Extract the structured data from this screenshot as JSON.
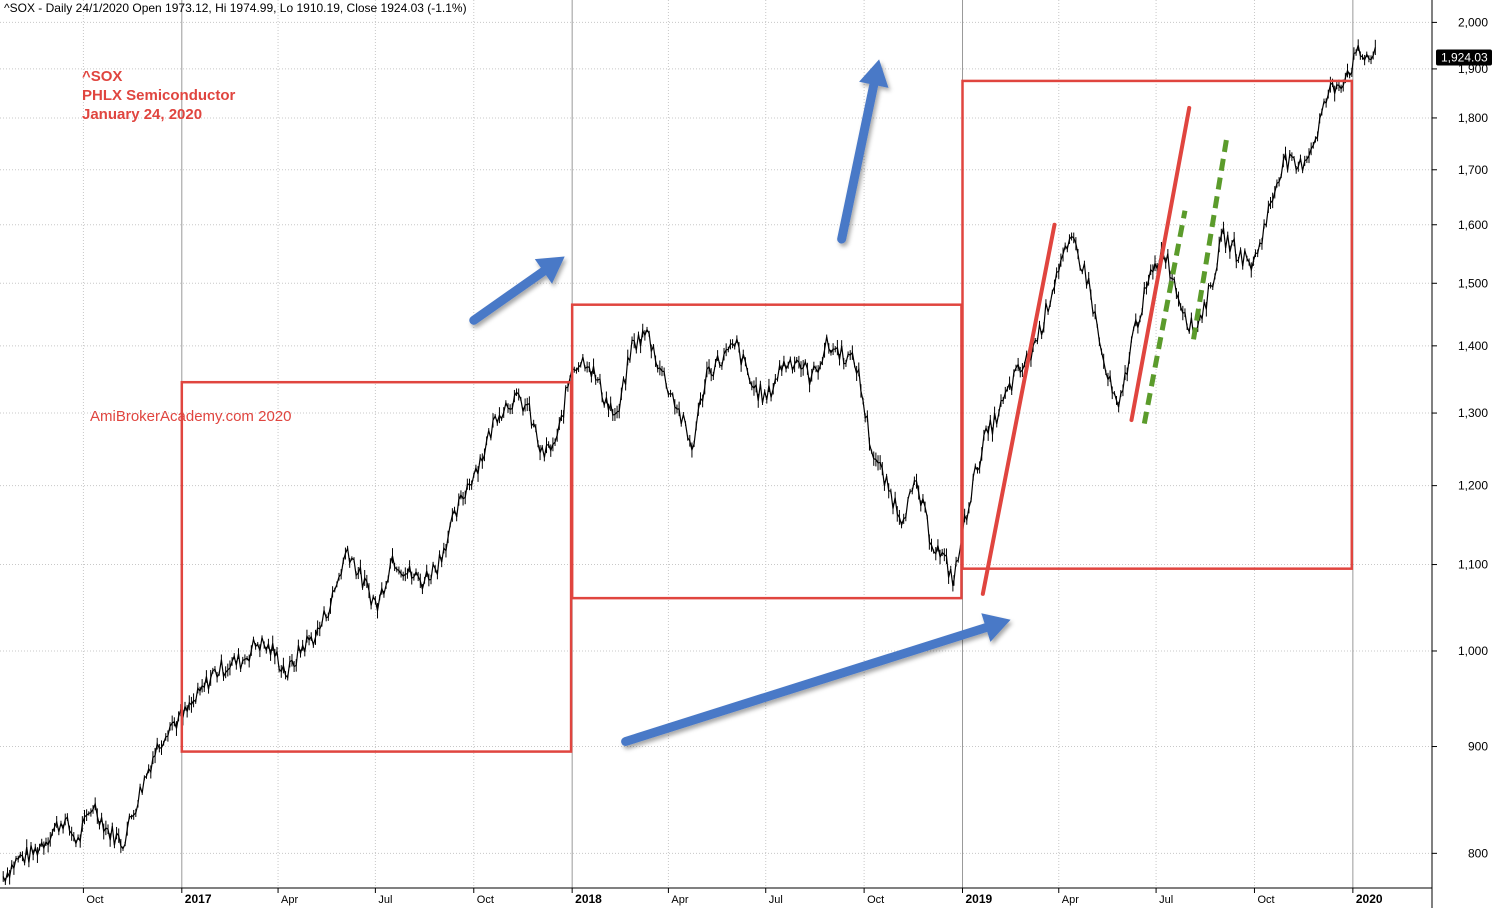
{
  "header": "^SOX - Daily 24/1/2020 Open 1973.12, Hi 1974.99, Lo 1910.19, Close 1924.03 (-1.1%)",
  "annotation": {
    "symbol": "^SOX",
    "name": "PHLX Semiconductor",
    "date": "January 24, 2020"
  },
  "watermark": "AmiBrokerAcademy.com   2020",
  "price_label": "1,924.03",
  "colors": {
    "box": "#e0453f",
    "trend_red": "#e0453f",
    "trend_green": "#5b9b2b",
    "arrow_blue": "#4a79c7",
    "price_label_bg": "#000000",
    "grid": "#c8c8c8"
  },
  "chart_data": {
    "type": "line",
    "scale": "log",
    "ylim": [
      770,
      2050
    ],
    "yticks": [
      800,
      900,
      1000,
      1100,
      1200,
      1300,
      1400,
      1500,
      1600,
      1700,
      1800,
      1900,
      2000
    ],
    "ytick_labels": [
      "800",
      "900",
      "1,000",
      "1,100",
      "1,200",
      "1,300",
      "1,400",
      "1,500",
      "1,600",
      "1,700",
      "1,800",
      "1,900",
      "2,000"
    ],
    "xlim": [
      "2016-07-15",
      "2020-03-15"
    ],
    "xticks": [
      {
        "date": "2016-10-01",
        "label": "Oct",
        "major": false
      },
      {
        "date": "2017-01-01",
        "label": "2017",
        "major": true
      },
      {
        "date": "2017-04-01",
        "label": "Apr",
        "major": false
      },
      {
        "date": "2017-07-01",
        "label": "Jul",
        "major": false
      },
      {
        "date": "2017-10-01",
        "label": "Oct",
        "major": false
      },
      {
        "date": "2018-01-01",
        "label": "2018",
        "major": true
      },
      {
        "date": "2018-04-01",
        "label": "Apr",
        "major": false
      },
      {
        "date": "2018-07-01",
        "label": "Jul",
        "major": false
      },
      {
        "date": "2018-10-01",
        "label": "Oct",
        "major": false
      },
      {
        "date": "2019-01-01",
        "label": "2019",
        "major": true
      },
      {
        "date": "2019-04-01",
        "label": "Apr",
        "major": false
      },
      {
        "date": "2019-07-01",
        "label": "Jul",
        "major": false
      },
      {
        "date": "2019-10-01",
        "label": "Oct",
        "major": false
      },
      {
        "date": "2020-01-01",
        "label": "2020",
        "major": true
      }
    ],
    "grid": true,
    "series": [
      {
        "x": [
          "2016-07-18",
          "2016-08-01",
          "2016-08-15",
          "2016-08-29",
          "2016-09-12",
          "2016-09-26",
          "2016-10-10",
          "2016-10-24",
          "2016-11-07",
          "2016-11-21",
          "2016-12-05",
          "2016-12-19",
          "2017-01-02",
          "2017-01-16",
          "2017-01-30",
          "2017-02-13",
          "2017-02-27",
          "2017-03-13",
          "2017-03-27",
          "2017-04-10",
          "2017-04-24",
          "2017-05-08",
          "2017-05-22",
          "2017-06-05",
          "2017-06-19",
          "2017-07-03",
          "2017-07-17",
          "2017-07-31",
          "2017-08-14",
          "2017-08-28",
          "2017-09-11",
          "2017-09-25",
          "2017-10-09",
          "2017-10-23",
          "2017-11-06",
          "2017-11-20",
          "2017-12-04",
          "2017-12-18",
          "2018-01-01",
          "2018-01-15",
          "2018-01-29",
          "2018-02-12",
          "2018-02-26",
          "2018-03-12",
          "2018-03-26",
          "2018-04-09",
          "2018-04-23",
          "2018-05-07",
          "2018-05-21",
          "2018-06-04",
          "2018-06-18",
          "2018-07-02",
          "2018-07-16",
          "2018-07-30",
          "2018-08-13",
          "2018-08-27",
          "2018-09-10",
          "2018-09-24",
          "2018-10-08",
          "2018-10-22",
          "2018-11-05",
          "2018-11-19",
          "2018-12-03",
          "2018-12-17",
          "2018-12-24",
          "2019-01-07",
          "2019-01-21",
          "2019-02-04",
          "2019-02-18",
          "2019-03-04",
          "2019-03-18",
          "2019-04-01",
          "2019-04-15",
          "2019-04-29",
          "2019-05-13",
          "2019-05-27",
          "2019-06-10",
          "2019-06-24",
          "2019-07-08",
          "2019-07-22",
          "2019-08-05",
          "2019-08-19",
          "2019-09-02",
          "2019-09-16",
          "2019-09-30",
          "2019-10-14",
          "2019-10-28",
          "2019-11-11",
          "2019-11-25",
          "2019-12-09",
          "2019-12-23",
          "2020-01-06",
          "2020-01-24"
        ],
        "close": [
          780,
          795,
          800,
          815,
          830,
          810,
          845,
          820,
          810,
          850,
          890,
          920,
          930,
          950,
          975,
          985,
          990,
          1010,
          1000,
          975,
          1005,
          1020,
          1060,
          1120,
          1080,
          1050,
          1110,
          1090,
          1080,
          1100,
          1150,
          1200,
          1240,
          1300,
          1320,
          1310,
          1240,
          1260,
          1370,
          1380,
          1330,
          1290,
          1400,
          1420,
          1360,
          1310,
          1250,
          1360,
          1380,
          1400,
          1340,
          1320,
          1370,
          1380,
          1350,
          1400,
          1390,
          1370,
          1250,
          1200,
          1160,
          1200,
          1130,
          1100,
          1080,
          1180,
          1260,
          1300,
          1350,
          1380,
          1440,
          1530,
          1570,
          1500,
          1370,
          1300,
          1420,
          1500,
          1560,
          1480,
          1420,
          1480,
          1580,
          1550,
          1530,
          1620,
          1720,
          1700,
          1750,
          1850,
          1880,
          1930,
          1924
        ]
      }
    ]
  },
  "overlays": {
    "boxes": [
      {
        "x0": "2017-01-01",
        "x1": "2017-12-31",
        "y0": 895,
        "y1": 1345
      },
      {
        "x0": "2018-01-01",
        "x1": "2018-12-31",
        "y0": 1060,
        "y1": 1465
      },
      {
        "x0": "2019-01-01",
        "x1": "2019-12-31",
        "y0": 1095,
        "y1": 1875
      }
    ],
    "red_lines": [
      {
        "x0": "2019-01-20",
        "y0": 1065,
        "x1": "2019-03-28",
        "y1": 1600
      },
      {
        "x0": "2019-06-08",
        "y0": 1290,
        "x1": "2019-08-01",
        "y1": 1820
      }
    ],
    "green_lines": [
      {
        "x0": "2019-06-20",
        "y0": 1285,
        "x1": "2019-07-28",
        "y1": 1625
      },
      {
        "x0": "2019-08-05",
        "y0": 1410,
        "x1": "2019-09-05",
        "y1": 1760
      }
    ],
    "arrows": [
      {
        "x0": "2017-10-01",
        "y0": 1440,
        "x1": "2017-12-25",
        "y1": 1545
      },
      {
        "x0": "2018-09-10",
        "y0": 1575,
        "x1": "2018-10-15",
        "y1": 1920
      },
      {
        "x0": "2018-02-20",
        "y0": 905,
        "x1": "2019-02-15",
        "y1": 1035
      }
    ]
  }
}
